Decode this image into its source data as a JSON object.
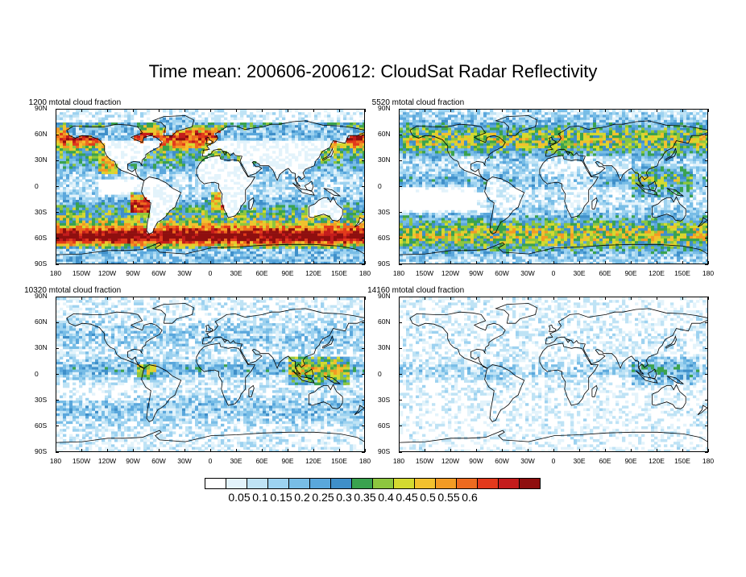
{
  "title": "Time mean: 200606-200612: CloudSat Radar Reflectivity",
  "panels": [
    {
      "left_label": "total cloud fraction",
      "right_label": "1200 m",
      "level": "low"
    },
    {
      "left_label": "total cloud fraction",
      "right_label": "5520 m",
      "level": "mid"
    },
    {
      "left_label": "total cloud fraction",
      "right_label": "10320 m",
      "level": "high"
    },
    {
      "left_label": "total cloud fraction",
      "right_label": "14160 m",
      "level": "top"
    }
  ],
  "lat_labels": [
    "90N",
    "60N",
    "30N",
    "0",
    "30S",
    "60S",
    "90S"
  ],
  "lon_labels": [
    "180",
    "150W",
    "120W",
    "90W",
    "60W",
    "30W",
    "0",
    "30E",
    "60E",
    "90E",
    "120E",
    "150E",
    "180"
  ],
  "colorbar": {
    "labels": [
      "0.05",
      "0.1",
      "0.15",
      "0.2",
      "0.25",
      "0.3",
      "0.35",
      "0.4",
      "0.45",
      "0.5",
      "0.55",
      "0.6"
    ],
    "colors": [
      "#ffffff",
      "#e3f3fb",
      "#bfe3f5",
      "#9dd2f0",
      "#78bde6",
      "#5aa7dc",
      "#3f8fc9",
      "#3aa24f",
      "#8dc63f",
      "#d4d930",
      "#f2c12e",
      "#f29b24",
      "#ed6a1f",
      "#e2391b",
      "#c41c1c",
      "#8f0f0f"
    ]
  }
}
